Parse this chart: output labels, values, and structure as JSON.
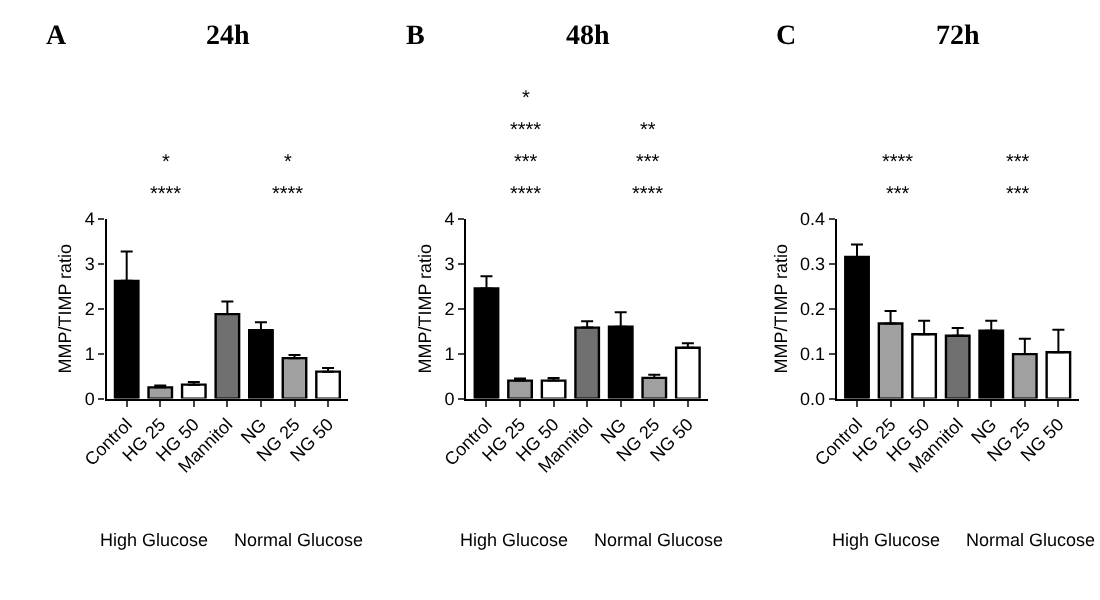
{
  "chart_data": [
    {
      "type": "bar",
      "title": "A",
      "subtitle": "24h",
      "ylabel": "MMP/TIMP ratio",
      "categories": [
        "Control",
        "HG 25",
        "HG 50",
        "Mannitol",
        "NG",
        "NG 25",
        "NG 50"
      ],
      "values": [
        2.62,
        0.25,
        0.31,
        1.88,
        1.52,
        0.9,
        0.6
      ],
      "errors": [
        0.65,
        0.04,
        0.06,
        0.28,
        0.18,
        0.07,
        0.08
      ],
      "colors": [
        "#000000",
        "#a0a0a0",
        "#ffffff",
        "#707070",
        "#000000",
        "#a0a0a0",
        "#ffffff"
      ],
      "ylim": [
        0,
        4
      ],
      "yticks": [
        0,
        1,
        2,
        3,
        4
      ],
      "annotations": [
        "****",
        "****",
        "*",
        "*",
        "High Glucose",
        "Normal Glucose"
      ]
    },
    {
      "type": "bar",
      "title": "B",
      "subtitle": "48h",
      "ylabel": "MMP/TIMP ratio",
      "categories": [
        "Control",
        "HG 25",
        "HG 50",
        "Mannitol",
        "NG",
        "NG 25",
        "NG 50"
      ],
      "values": [
        2.45,
        0.4,
        0.4,
        1.58,
        1.6,
        0.46,
        1.13
      ],
      "errors": [
        0.27,
        0.05,
        0.06,
        0.14,
        0.32,
        0.07,
        0.1
      ],
      "colors": [
        "#000000",
        "#a0a0a0",
        "#ffffff",
        "#707070",
        "#000000",
        "#a0a0a0",
        "#ffffff"
      ],
      "ylim": [
        0,
        4
      ],
      "yticks": [
        0,
        1,
        2,
        3,
        4
      ],
      "annotations": [
        "****",
        "****",
        "***",
        "***",
        "****",
        "**",
        "*",
        "High Glucose",
        "Normal Glucose"
      ]
    },
    {
      "type": "bar",
      "title": "C",
      "subtitle": "72h",
      "ylabel": "MMP/TIMP ratio",
      "categories": [
        "Control",
        "HG 25",
        "HG 50",
        "Mannitol",
        "NG",
        "NG 25",
        "NG 50"
      ],
      "values": [
        0.315,
        0.167,
        0.143,
        0.14,
        0.151,
        0.099,
        0.103
      ],
      "errors": [
        0.028,
        0.028,
        0.03,
        0.017,
        0.022,
        0.034,
        0.05
      ],
      "colors": [
        "#000000",
        "#a0a0a0",
        "#ffffff",
        "#707070",
        "#000000",
        "#a0a0a0",
        "#ffffff"
      ],
      "ylim": [
        0,
        0.4
      ],
      "yticks": [
        {
          "value": 0,
          "label": "0.0"
        },
        0.1,
        0.2,
        0.3,
        0.4
      ],
      "annotations": [
        "***",
        "***",
        "****",
        "***",
        "High Glucose",
        "Normal Glucose"
      ]
    }
  ]
}
